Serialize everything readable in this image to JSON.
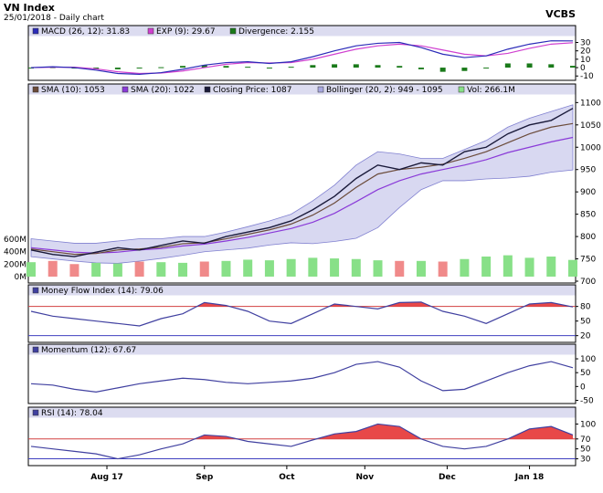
{
  "header": {
    "title": "VN Index",
    "subtitle": "25/01/2018 - Daily chart",
    "brand": "VCBS"
  },
  "colors": {
    "legend_bg": "#dcdcf0",
    "macd": "#2b2bb8",
    "exp": "#d040d0",
    "divergence": "#1a7a1a",
    "sma10": "#6b4b3a",
    "sma20": "#8a3ad8",
    "close": "#1a1a3a",
    "band_fill": "#a8a8e0",
    "vol_up": "#88e088",
    "vol_down": "#f08a8a",
    "indicator": "#4040a0",
    "overbought_fill": "#e84848",
    "ref_line_red": "#d04040",
    "ref_line_blue": "#4040c0",
    "axis": "#000000"
  },
  "chart_data": [
    {
      "type": "line",
      "panel": "macd",
      "legend": [
        {
          "label": "MACD (26, 12): 31.83",
          "color_key": "macd"
        },
        {
          "label": "EXP (9): 29.67",
          "color_key": "exp"
        },
        {
          "label": "Divergence: 2.155",
          "color_key": "divergence"
        }
      ],
      "y_ticks": [
        "30",
        "20",
        "10",
        "0",
        "-10"
      ],
      "ylim": [
        -13,
        36
      ],
      "series": [
        {
          "name": "MACD (26, 12)",
          "values": [
            0,
            1,
            0,
            -3,
            -7,
            -8,
            -6,
            -2,
            3,
            6,
            7,
            5,
            7,
            13,
            20,
            26,
            29,
            30,
            24,
            16,
            12,
            14,
            22,
            28,
            32,
            31.83
          ]
        },
        {
          "name": "EXP (9)",
          "values": [
            0,
            0.5,
            0.5,
            -1.5,
            -5,
            -7,
            -6.5,
            -4,
            0,
            4,
            6,
            5.5,
            6,
            10,
            16,
            22,
            26,
            28,
            26,
            21,
            16,
            14,
            17,
            23,
            28,
            29.67
          ]
        },
        {
          "name": "Divergence",
          "values": [
            0,
            0.5,
            -0.5,
            -1.5,
            -2,
            -1,
            0.5,
            2,
            3,
            2,
            1,
            -0.5,
            1,
            3,
            4,
            4,
            3,
            2,
            -2,
            -5,
            -4,
            0,
            5,
            5,
            4,
            2.155
          ]
        }
      ]
    },
    {
      "type": "line",
      "panel": "price",
      "legend": [
        {
          "label": "SMA (10): 1053",
          "color_key": "sma10"
        },
        {
          "label": "SMA (20): 1022",
          "color_key": "sma20"
        },
        {
          "label": "Closing Price: 1087",
          "color_key": "close"
        },
        {
          "label": "Bollinger (20, 2): 949 - 1095",
          "color_key": "band_fill"
        },
        {
          "label": "Vol: 266.1M",
          "color_key": "vol_up"
        }
      ],
      "y_ticks": [
        "1100",
        "1050",
        "1000",
        "950",
        "900",
        "850",
        "800",
        "750",
        "700"
      ],
      "ylim": [
        700,
        1115
      ],
      "vol_ticks": [
        "600M",
        "400M",
        "200M",
        "0M"
      ],
      "vol_lim": [
        0,
        800
      ],
      "series": [
        {
          "name": "Closing Price",
          "values": [
            770,
            760,
            755,
            765,
            775,
            770,
            780,
            790,
            785,
            800,
            810,
            820,
            835,
            860,
            890,
            930,
            960,
            950,
            965,
            960,
            990,
            1000,
            1030,
            1050,
            1060,
            1087
          ]
        },
        {
          "name": "SMA (10)",
          "values": [
            772,
            766,
            760,
            762,
            770,
            772,
            776,
            784,
            786,
            795,
            805,
            815,
            828,
            848,
            875,
            910,
            940,
            950,
            955,
            962,
            975,
            990,
            1010,
            1030,
            1045,
            1053
          ]
        },
        {
          "name": "SMA (20)",
          "values": [
            775,
            770,
            765,
            763,
            765,
            770,
            773,
            779,
            783,
            790,
            798,
            808,
            818,
            832,
            852,
            878,
            905,
            925,
            940,
            950,
            960,
            972,
            988,
            1000,
            1012,
            1022
          ]
        },
        {
          "name": "Bollinger upper",
          "values": [
            795,
            790,
            785,
            785,
            790,
            795,
            795,
            800,
            800,
            810,
            822,
            835,
            850,
            880,
            915,
            960,
            990,
            985,
            975,
            975,
            995,
            1015,
            1045,
            1065,
            1080,
            1095
          ]
        },
        {
          "name": "Bollinger lower",
          "values": [
            755,
            750,
            745,
            741,
            740,
            745,
            751,
            758,
            766,
            770,
            774,
            781,
            786,
            784,
            789,
            796,
            820,
            865,
            905,
            925,
            925,
            929,
            931,
            935,
            944,
            949
          ]
        },
        {
          "name": "Vol",
          "values": [
            230,
            250,
            200,
            220,
            210,
            240,
            230,
            220,
            240,
            250,
            270,
            260,
            280,
            300,
            290,
            280,
            260,
            250,
            250,
            240,
            280,
            320,
            340,
            300,
            320,
            266.1
          ]
        }
      ]
    },
    {
      "type": "area",
      "panel": "mfi",
      "legend": [
        {
          "label": "Money Flow Index (14): 79.06",
          "color_key": "indicator"
        }
      ],
      "y_ticks": [
        "80",
        "50",
        "20"
      ],
      "ylim": [
        10,
        100
      ],
      "reference_lines": [
        80,
        20
      ],
      "series": [
        {
          "name": "Money Flow Index (14)",
          "values": [
            70,
            60,
            55,
            50,
            45,
            40,
            55,
            65,
            88,
            82,
            70,
            50,
            45,
            65,
            85,
            80,
            75,
            88,
            89,
            70,
            60,
            45,
            65,
            85,
            88,
            79.06
          ]
        }
      ]
    },
    {
      "type": "line",
      "panel": "momentum",
      "legend": [
        {
          "label": "Momentum (12): 67.67",
          "color_key": "indicator"
        }
      ],
      "y_ticks": [
        "100",
        "50",
        "0",
        "-50"
      ],
      "ylim": [
        -55,
        110
      ],
      "series": [
        {
          "name": "Momentum (12)",
          "values": [
            10,
            5,
            -10,
            -20,
            -5,
            10,
            20,
            30,
            25,
            15,
            10,
            15,
            20,
            30,
            50,
            80,
            90,
            70,
            20,
            -15,
            -10,
            20,
            50,
            75,
            90,
            67.67
          ]
        }
      ]
    },
    {
      "type": "area",
      "panel": "rsi",
      "legend": [
        {
          "label": "RSI (14): 78.04",
          "color_key": "indicator"
        }
      ],
      "y_ticks": [
        "100",
        "70",
        "50",
        "30"
      ],
      "ylim": [
        20,
        110
      ],
      "reference_lines": [
        70,
        30
      ],
      "series": [
        {
          "name": "RSI (14)",
          "values": [
            55,
            50,
            45,
            40,
            30,
            38,
            50,
            60,
            78,
            75,
            65,
            60,
            55,
            68,
            80,
            85,
            100,
            95,
            70,
            55,
            50,
            55,
            70,
            90,
            95,
            78.04
          ]
        }
      ]
    }
  ],
  "x_axis": {
    "labels": [
      "Aug 17",
      "Sep",
      "Oct",
      "Nov",
      "Dec",
      "Jan 18"
    ],
    "label_positions": [
      3.5,
      8,
      11.8,
      15.4,
      19.2,
      23
    ]
  }
}
